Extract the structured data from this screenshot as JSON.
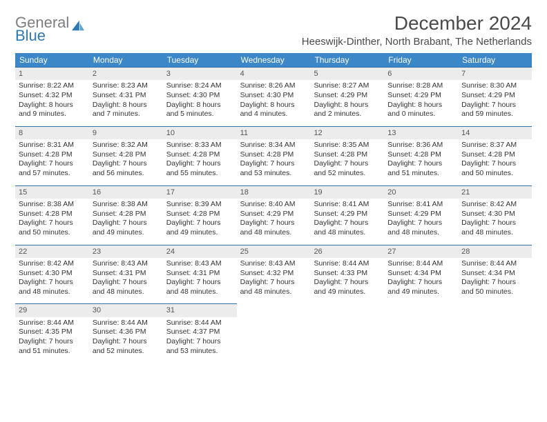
{
  "logo": {
    "line1": "General",
    "line2": "Blue"
  },
  "title": "December 2024",
  "subtitle": "Heeswijk-Dinther, North Brabant, The Netherlands",
  "colors": {
    "header_bg": "#3b87c8",
    "header_text": "#ffffff",
    "daynum_bg": "#ececec",
    "daynum_border": "#2f6fa3",
    "body_text": "#333333",
    "logo_gray": "#7d7d7d",
    "logo_blue": "#2f78b7"
  },
  "typography": {
    "title_size_pt": 21,
    "subtitle_size_pt": 11,
    "dayhead_size_pt": 9,
    "cell_size_pt": 8
  },
  "day_names": [
    "Sunday",
    "Monday",
    "Tuesday",
    "Wednesday",
    "Thursday",
    "Friday",
    "Saturday"
  ],
  "weeks": [
    [
      {
        "n": "1",
        "sr": "Sunrise: 8:22 AM",
        "ss": "Sunset: 4:32 PM",
        "d1": "Daylight: 8 hours",
        "d2": "and 9 minutes."
      },
      {
        "n": "2",
        "sr": "Sunrise: 8:23 AM",
        "ss": "Sunset: 4:31 PM",
        "d1": "Daylight: 8 hours",
        "d2": "and 7 minutes."
      },
      {
        "n": "3",
        "sr": "Sunrise: 8:24 AM",
        "ss": "Sunset: 4:30 PM",
        "d1": "Daylight: 8 hours",
        "d2": "and 5 minutes."
      },
      {
        "n": "4",
        "sr": "Sunrise: 8:26 AM",
        "ss": "Sunset: 4:30 PM",
        "d1": "Daylight: 8 hours",
        "d2": "and 4 minutes."
      },
      {
        "n": "5",
        "sr": "Sunrise: 8:27 AM",
        "ss": "Sunset: 4:29 PM",
        "d1": "Daylight: 8 hours",
        "d2": "and 2 minutes."
      },
      {
        "n": "6",
        "sr": "Sunrise: 8:28 AM",
        "ss": "Sunset: 4:29 PM",
        "d1": "Daylight: 8 hours",
        "d2": "and 0 minutes."
      },
      {
        "n": "7",
        "sr": "Sunrise: 8:30 AM",
        "ss": "Sunset: 4:29 PM",
        "d1": "Daylight: 7 hours",
        "d2": "and 59 minutes."
      }
    ],
    [
      {
        "n": "8",
        "sr": "Sunrise: 8:31 AM",
        "ss": "Sunset: 4:28 PM",
        "d1": "Daylight: 7 hours",
        "d2": "and 57 minutes."
      },
      {
        "n": "9",
        "sr": "Sunrise: 8:32 AM",
        "ss": "Sunset: 4:28 PM",
        "d1": "Daylight: 7 hours",
        "d2": "and 56 minutes."
      },
      {
        "n": "10",
        "sr": "Sunrise: 8:33 AM",
        "ss": "Sunset: 4:28 PM",
        "d1": "Daylight: 7 hours",
        "d2": "and 55 minutes."
      },
      {
        "n": "11",
        "sr": "Sunrise: 8:34 AM",
        "ss": "Sunset: 4:28 PM",
        "d1": "Daylight: 7 hours",
        "d2": "and 53 minutes."
      },
      {
        "n": "12",
        "sr": "Sunrise: 8:35 AM",
        "ss": "Sunset: 4:28 PM",
        "d1": "Daylight: 7 hours",
        "d2": "and 52 minutes."
      },
      {
        "n": "13",
        "sr": "Sunrise: 8:36 AM",
        "ss": "Sunset: 4:28 PM",
        "d1": "Daylight: 7 hours",
        "d2": "and 51 minutes."
      },
      {
        "n": "14",
        "sr": "Sunrise: 8:37 AM",
        "ss": "Sunset: 4:28 PM",
        "d1": "Daylight: 7 hours",
        "d2": "and 50 minutes."
      }
    ],
    [
      {
        "n": "15",
        "sr": "Sunrise: 8:38 AM",
        "ss": "Sunset: 4:28 PM",
        "d1": "Daylight: 7 hours",
        "d2": "and 50 minutes."
      },
      {
        "n": "16",
        "sr": "Sunrise: 8:38 AM",
        "ss": "Sunset: 4:28 PM",
        "d1": "Daylight: 7 hours",
        "d2": "and 49 minutes."
      },
      {
        "n": "17",
        "sr": "Sunrise: 8:39 AM",
        "ss": "Sunset: 4:28 PM",
        "d1": "Daylight: 7 hours",
        "d2": "and 49 minutes."
      },
      {
        "n": "18",
        "sr": "Sunrise: 8:40 AM",
        "ss": "Sunset: 4:29 PM",
        "d1": "Daylight: 7 hours",
        "d2": "and 48 minutes."
      },
      {
        "n": "19",
        "sr": "Sunrise: 8:41 AM",
        "ss": "Sunset: 4:29 PM",
        "d1": "Daylight: 7 hours",
        "d2": "and 48 minutes."
      },
      {
        "n": "20",
        "sr": "Sunrise: 8:41 AM",
        "ss": "Sunset: 4:29 PM",
        "d1": "Daylight: 7 hours",
        "d2": "and 48 minutes."
      },
      {
        "n": "21",
        "sr": "Sunrise: 8:42 AM",
        "ss": "Sunset: 4:30 PM",
        "d1": "Daylight: 7 hours",
        "d2": "and 48 minutes."
      }
    ],
    [
      {
        "n": "22",
        "sr": "Sunrise: 8:42 AM",
        "ss": "Sunset: 4:30 PM",
        "d1": "Daylight: 7 hours",
        "d2": "and 48 minutes."
      },
      {
        "n": "23",
        "sr": "Sunrise: 8:43 AM",
        "ss": "Sunset: 4:31 PM",
        "d1": "Daylight: 7 hours",
        "d2": "and 48 minutes."
      },
      {
        "n": "24",
        "sr": "Sunrise: 8:43 AM",
        "ss": "Sunset: 4:31 PM",
        "d1": "Daylight: 7 hours",
        "d2": "and 48 minutes."
      },
      {
        "n": "25",
        "sr": "Sunrise: 8:43 AM",
        "ss": "Sunset: 4:32 PM",
        "d1": "Daylight: 7 hours",
        "d2": "and 48 minutes."
      },
      {
        "n": "26",
        "sr": "Sunrise: 8:44 AM",
        "ss": "Sunset: 4:33 PM",
        "d1": "Daylight: 7 hours",
        "d2": "and 49 minutes."
      },
      {
        "n": "27",
        "sr": "Sunrise: 8:44 AM",
        "ss": "Sunset: 4:34 PM",
        "d1": "Daylight: 7 hours",
        "d2": "and 49 minutes."
      },
      {
        "n": "28",
        "sr": "Sunrise: 8:44 AM",
        "ss": "Sunset: 4:34 PM",
        "d1": "Daylight: 7 hours",
        "d2": "and 50 minutes."
      }
    ],
    [
      {
        "n": "29",
        "sr": "Sunrise: 8:44 AM",
        "ss": "Sunset: 4:35 PM",
        "d1": "Daylight: 7 hours",
        "d2": "and 51 minutes."
      },
      {
        "n": "30",
        "sr": "Sunrise: 8:44 AM",
        "ss": "Sunset: 4:36 PM",
        "d1": "Daylight: 7 hours",
        "d2": "and 52 minutes."
      },
      {
        "n": "31",
        "sr": "Sunrise: 8:44 AM",
        "ss": "Sunset: 4:37 PM",
        "d1": "Daylight: 7 hours",
        "d2": "and 53 minutes."
      },
      {
        "empty": true
      },
      {
        "empty": true
      },
      {
        "empty": true
      },
      {
        "empty": true
      }
    ]
  ]
}
